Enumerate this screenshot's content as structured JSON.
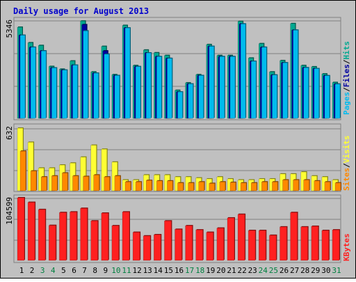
{
  "colors": {
    "background": "#C0C0C0",
    "plot_bg": "#C0C0C0",
    "gridline": "#808080",
    "title": "#0000CC",
    "hits": "#00A890",
    "files": "#0000A0",
    "pages": "#00BBEE",
    "visits": "#FFFF33",
    "sites": "#FF8800",
    "kbytes": "#FF2020",
    "weekend_day": "#008040",
    "weekday": "#000000"
  },
  "chart_data": [
    {
      "type": "bar",
      "title": "Daily usage for August 2013",
      "ymax_label": "5346",
      "ymax": 5346,
      "legend": [
        "Pages",
        "Files",
        "Hits"
      ],
      "series": [
        {
          "name": "Hits",
          "values": [
            5000,
            4150,
            4000,
            2850,
            2700,
            3150,
            5340,
            2550,
            3950,
            2400,
            5100,
            2900,
            3750,
            3600,
            3450,
            1540,
            1950,
            2400,
            4050,
            3450,
            3450,
            5320,
            3310,
            4100,
            2550,
            3170,
            5200,
            2900,
            2830,
            2440,
            1970
          ]
        },
        {
          "name": "Files",
          "values": [
            4560,
            3900,
            3700,
            2770,
            2650,
            2920,
            5140,
            2480,
            3700,
            2350,
            4960,
            2840,
            3590,
            3390,
            3290,
            1450,
            1890,
            2350,
            3950,
            3390,
            3390,
            5180,
            3130,
            3900,
            2380,
            3050,
            4840,
            2780,
            2730,
            2340,
            1880
          ]
        },
        {
          "name": "Pages",
          "values": [
            4560,
            3900,
            3700,
            2770,
            2650,
            2920,
            4800,
            2480,
            3520,
            2350,
            4960,
            2840,
            3590,
            3390,
            3290,
            1450,
            1890,
            2350,
            3950,
            3390,
            3390,
            5180,
            3130,
            3900,
            2380,
            3050,
            4840,
            2780,
            2730,
            2340,
            1880
          ]
        }
      ]
    },
    {
      "type": "bar",
      "ymax_label": "632",
      "ymax": 632,
      "legend": [
        "Sites",
        "Visits"
      ],
      "series": [
        {
          "name": "Visits",
          "values": [
            632,
            490,
            230,
            230,
            260,
            280,
            340,
            460,
            420,
            290,
            110,
            110,
            160,
            160,
            160,
            140,
            140,
            130,
            120,
            140,
            120,
            110,
            110,
            120,
            120,
            170,
            170,
            190,
            150,
            140,
            110
          ]
        },
        {
          "name": "Sites",
          "values": [
            400,
            200,
            140,
            150,
            180,
            150,
            145,
            160,
            140,
            150,
            90,
            90,
            105,
            100,
            100,
            80,
            80,
            90,
            75,
            90,
            85,
            80,
            80,
            90,
            90,
            110,
            110,
            110,
            100,
            90,
            80
          ]
        }
      ]
    },
    {
      "type": "bar",
      "ymax_label": "104599",
      "ymax": 104599,
      "legend": [
        "KBytes"
      ],
      "categories": [
        "1",
        "2",
        "3",
        "4",
        "5",
        "6",
        "7",
        "8",
        "9",
        "10",
        "11",
        "12",
        "13",
        "14",
        "15",
        "16",
        "17",
        "18",
        "19",
        "20",
        "21",
        "22",
        "23",
        "24",
        "25",
        "26",
        "27",
        "28",
        "29",
        "30",
        "31"
      ],
      "weekend_days": [
        "3",
        "4",
        "10",
        "11",
        "17",
        "18",
        "24",
        "25",
        "31"
      ],
      "series": [
        {
          "name": "KBytes",
          "values": [
            104599,
            97000,
            85000,
            58500,
            80000,
            81000,
            87000,
            66000,
            79000,
            58000,
            81000,
            47000,
            41000,
            43000,
            66000,
            52000,
            58000,
            51000,
            47000,
            54000,
            71000,
            77000,
            50000,
            50000,
            42000,
            56000,
            80000,
            56000,
            57000,
            50000,
            51000
          ]
        }
      ]
    }
  ]
}
